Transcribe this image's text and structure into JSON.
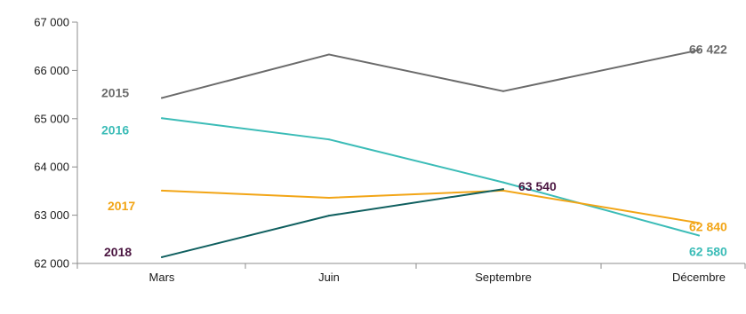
{
  "chart_data": {
    "type": "line",
    "title": "",
    "xlabel": "",
    "ylabel": "",
    "categories": [
      "Mars",
      "Juin",
      "Septembre",
      "Décembre"
    ],
    "ylim": [
      62000,
      67000
    ],
    "yticks": [
      62000,
      63000,
      64000,
      65000,
      66000,
      67000
    ],
    "ytick_labels": [
      "62 000",
      "63 000",
      "64 000",
      "65 000",
      "66 000",
      "67 000"
    ],
    "grid": false,
    "legend": "none (series labeled inline)",
    "series": [
      {
        "name": "2015",
        "color": "#6b6b6b",
        "values": [
          65430,
          66330,
          65570,
          66422
        ],
        "end_label": "66 422"
      },
      {
        "name": "2016",
        "color": "#3bbcb7",
        "values": [
          65010,
          64570,
          63680,
          62580
        ],
        "end_label": "62 580"
      },
      {
        "name": "2017",
        "color": "#f2a516",
        "values": [
          63510,
          63360,
          63510,
          62840
        ],
        "end_label": "62 840"
      },
      {
        "name": "2018",
        "color": "#0f5f5f",
        "name_color": "#4a1540",
        "values": [
          62130,
          62990,
          63540,
          null
        ],
        "end_label": "63 540",
        "end_label_color": "#4a1540"
      }
    ]
  }
}
